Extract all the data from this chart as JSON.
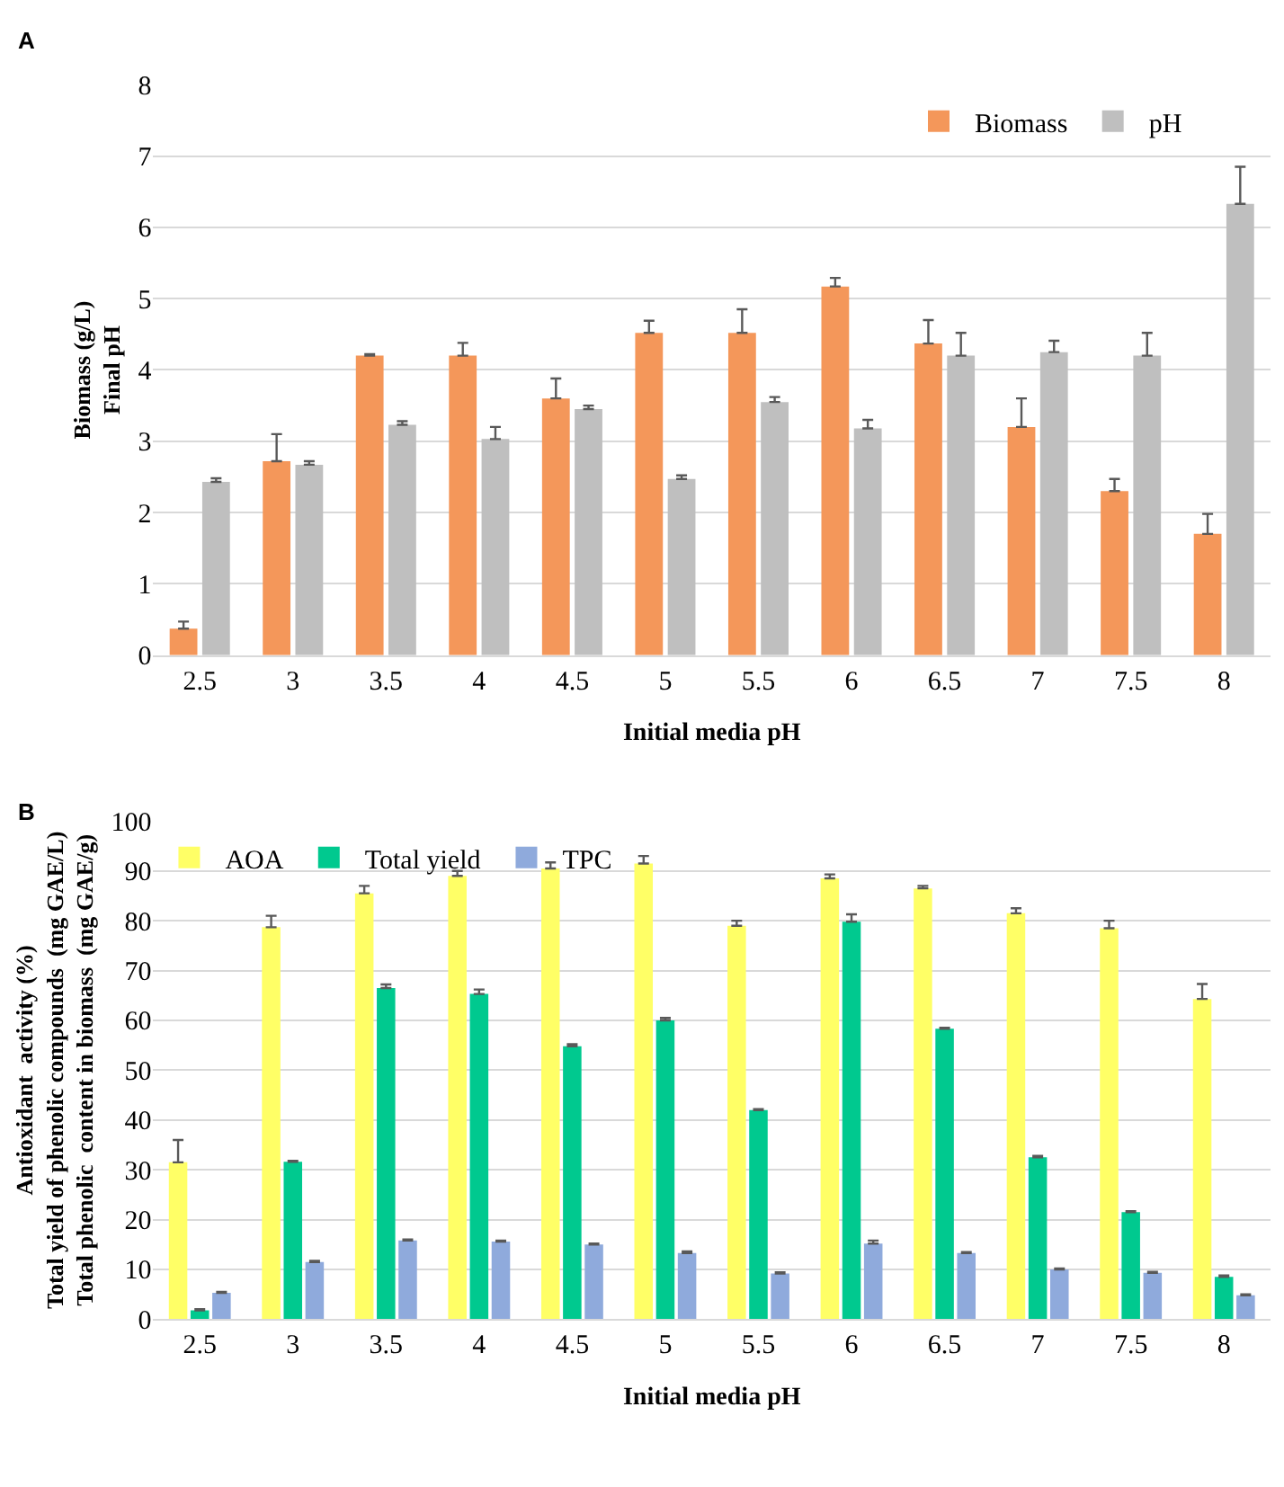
{
  "chart_data": [
    {
      "type": "bar",
      "annotations": [
        "A"
      ],
      "xlabel": "Initial media pH",
      "ylabel": "Biomass (g/L)\nFinal pH",
      "categories": [
        "2.5",
        "3",
        "3.5",
        "4",
        "4.5",
        "5",
        "5.5",
        "6",
        "6.5",
        "7",
        "7.5",
        "8"
      ],
      "ylim": [
        0,
        8
      ],
      "yticks": [
        0,
        1,
        2,
        3,
        4,
        5,
        6,
        7,
        8
      ],
      "grid": "y",
      "legend": "top right",
      "series": [
        {
          "name": "Biomass",
          "color": "#f4975a",
          "values": [
            0.37,
            2.72,
            4.2,
            4.2,
            3.6,
            4.52,
            4.52,
            5.17,
            4.37,
            3.2,
            2.3,
            1.7
          ],
          "errors": [
            [
              0.37,
              0.47
            ],
            [
              2.72,
              3.1
            ],
            [
              4.2,
              4.22
            ],
            [
              4.2,
              4.38
            ],
            [
              3.6,
              3.88
            ],
            [
              4.52,
              4.69
            ],
            [
              4.52,
              4.85
            ],
            [
              5.17,
              5.29
            ],
            [
              4.37,
              4.7
            ],
            [
              3.2,
              3.6
            ],
            [
              2.3,
              2.47
            ],
            [
              1.7,
              1.98
            ]
          ]
        },
        {
          "name": "pH",
          "color": "#bfbfbf",
          "values": [
            2.43,
            2.67,
            3.23,
            3.03,
            3.45,
            2.47,
            3.55,
            3.18,
            4.2,
            4.25,
            4.2,
            6.33
          ],
          "errors": [
            [
              2.43,
              2.48
            ],
            [
              2.67,
              2.72
            ],
            [
              3.23,
              3.28
            ],
            [
              3.03,
              3.2
            ],
            [
              3.45,
              3.5
            ],
            [
              2.47,
              2.52
            ],
            [
              3.55,
              3.62
            ],
            [
              3.18,
              3.3
            ],
            [
              4.2,
              4.52
            ],
            [
              4.25,
              4.41
            ],
            [
              4.2,
              4.52
            ],
            [
              6.33,
              6.85
            ]
          ]
        }
      ]
    },
    {
      "type": "bar",
      "annotations": [
        "B"
      ],
      "xlabel": "Initial media pH",
      "ylabel": "Antioxidant  activity (%)\nTotal yield of phenolic compounds  (mg GAE/L)\nTotal phenolic  content in biomass  (mg GAE/g)",
      "categories": [
        "2.5",
        "3",
        "3.5",
        "4",
        "4.5",
        "5",
        "5.5",
        "6",
        "6.5",
        "7",
        "7.5",
        "8"
      ],
      "ylim": [
        0,
        100
      ],
      "yticks": [
        0,
        10,
        20,
        30,
        40,
        50,
        60,
        70,
        80,
        90,
        100
      ],
      "grid": "y",
      "legend": "top left",
      "series": [
        {
          "name": "AOA",
          "color": "#ffff66",
          "values": [
            31.5,
            78.7,
            85.5,
            89,
            90.5,
            91.5,
            79,
            88.5,
            86.5,
            81.5,
            78.5,
            64.3
          ],
          "errors": [
            [
              31.5,
              36
            ],
            [
              78.7,
              81
            ],
            [
              85.5,
              87
            ],
            [
              89,
              90
            ],
            [
              90.5,
              91.7
            ],
            [
              91.5,
              93
            ],
            [
              79,
              80
            ],
            [
              88.5,
              89.3
            ],
            [
              86.5,
              87
            ],
            [
              81.5,
              82.5
            ],
            [
              78.5,
              80
            ],
            [
              64.3,
              67.3
            ]
          ]
        },
        {
          "name": "Total yield",
          "color": "#00c98f",
          "values": [
            1.8,
            31.6,
            66.5,
            65.3,
            54.8,
            60,
            42,
            79.8,
            58.3,
            32.5,
            21.5,
            8.5
          ],
          "errors": [
            [
              1.8,
              2
            ],
            [
              31.6,
              31.8
            ],
            [
              66.5,
              67.2
            ],
            [
              65.3,
              66.2
            ],
            [
              54.8,
              55.2
            ],
            [
              60,
              60.5
            ],
            [
              42,
              42.2
            ],
            [
              79.8,
              81.3
            ],
            [
              58.3,
              58.5
            ],
            [
              32.5,
              32.8
            ],
            [
              21.5,
              21.7
            ],
            [
              8.5,
              8.8
            ]
          ]
        },
        {
          "name": "TPC",
          "color": "#8faadc",
          "values": [
            5.3,
            11.5,
            15.8,
            15.6,
            15,
            13.3,
            9.2,
            15.2,
            13.3,
            10,
            9.3,
            4.8
          ],
          "errors": [
            [
              5.3,
              5.5
            ],
            [
              11.5,
              11.7
            ],
            [
              15.8,
              16
            ],
            [
              15.6,
              15.8
            ],
            [
              15,
              15.2
            ],
            [
              13.3,
              13.6
            ],
            [
              9.2,
              9.4
            ],
            [
              15.2,
              15.8
            ],
            [
              13.3,
              13.5
            ],
            [
              10,
              10.2
            ],
            [
              9.3,
              9.5
            ],
            [
              4.8,
              5
            ]
          ]
        }
      ]
    }
  ]
}
